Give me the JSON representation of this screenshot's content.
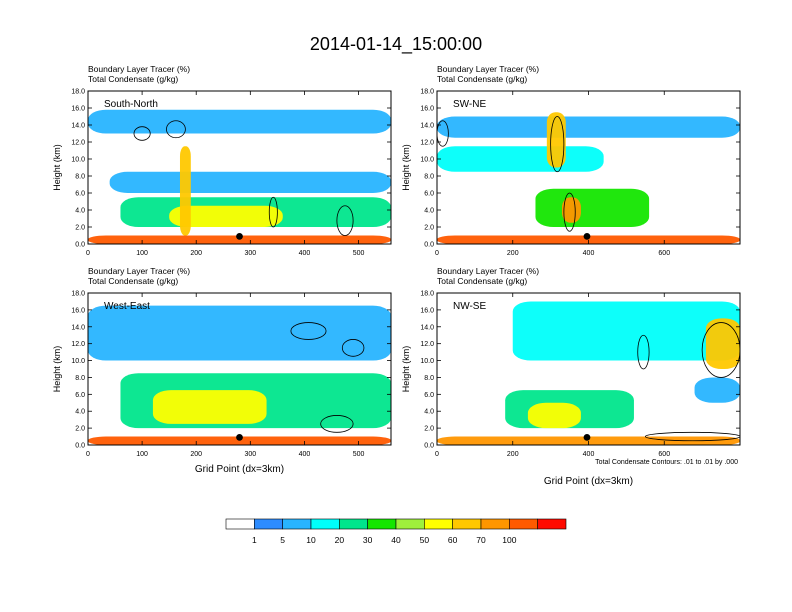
{
  "figure": {
    "title": "2014-01-14_15:00:00",
    "contour_note": "Total Condensate Contours: .01 to .01 by .000",
    "colorbar": {
      "levels": [
        "1",
        "5",
        "10",
        "20",
        "30",
        "40",
        "50",
        "60",
        "70",
        "100"
      ],
      "colors": [
        "#ffffff",
        "#2d8cff",
        "#28b4ff",
        "#00fffa",
        "#00e68c",
        "#14e600",
        "#9ff03c",
        "#ffff00",
        "#ffc800",
        "#ff9600",
        "#ff5a00",
        "#ff0a00"
      ]
    }
  },
  "chart_data": [
    {
      "type": "heatmap",
      "title": "South-North",
      "subtitle_lines": [
        "Boundary Layer Tracer   (%)",
        "Total Condensate   (g/kg)"
      ],
      "ylabel": "Height (km)",
      "xlabel": "",
      "xlim": [
        0,
        560
      ],
      "ylim": [
        0,
        18
      ],
      "xticks": [
        "0",
        "100",
        "200",
        "300",
        "400",
        "500"
      ],
      "yticks": [
        "0.0",
        "2.0",
        "4.0",
        "6.0",
        "8.0",
        "10.0",
        "12.0",
        "14.0",
        "16.0",
        "18.0"
      ],
      "marker_x": 280,
      "tracer_fields": [
        {
          "x_range": [
            0,
            560
          ],
          "y_range": [
            13.0,
            15.8
          ],
          "level": 2
        },
        {
          "x_range": [
            40,
            560
          ],
          "y_range": [
            6.0,
            8.5
          ],
          "level": 2
        },
        {
          "x_range": [
            60,
            560
          ],
          "y_range": [
            2.0,
            5.5
          ],
          "level": 4
        },
        {
          "x_range": [
            150,
            360
          ],
          "y_range": [
            2.0,
            4.5
          ],
          "level": 7
        },
        {
          "x_range": [
            170,
            190
          ],
          "y_range": [
            1.0,
            11.5
          ],
          "level": 8
        },
        {
          "x_range": [
            0,
            560
          ],
          "y_range": [
            0.0,
            1.0
          ],
          "level": 10
        }
      ],
      "condensate_contours": [
        {
          "x": [
            85,
            115
          ],
          "y": [
            12.2,
            13.8
          ]
        },
        {
          "x": [
            145,
            180
          ],
          "y": [
            12.5,
            14.5
          ]
        },
        {
          "x": [
            335,
            350
          ],
          "y": [
            2.0,
            5.5
          ]
        },
        {
          "x": [
            460,
            490
          ],
          "y": [
            1.0,
            4.5
          ]
        }
      ]
    },
    {
      "type": "heatmap",
      "title": "SW-NE",
      "subtitle_lines": [
        "Boundary Layer Tracer   (%)",
        "Total Condensate   (g/kg)"
      ],
      "ylabel": "Height (km)",
      "xlabel": "",
      "xlim": [
        0,
        800
      ],
      "ylim": [
        0,
        18
      ],
      "xticks": [
        "0",
        "200",
        "400",
        "600"
      ],
      "yticks": [
        "0.0",
        "2.0",
        "4.0",
        "6.0",
        "8.0",
        "10.0",
        "12.0",
        "14.0",
        "16.0",
        "18.0"
      ],
      "marker_x": 396,
      "tracer_fields": [
        {
          "x_range": [
            0,
            800
          ],
          "y_range": [
            12.5,
            15.0
          ],
          "level": 2
        },
        {
          "x_range": [
            0,
            440
          ],
          "y_range": [
            8.5,
            11.5
          ],
          "level": 3
        },
        {
          "x_range": [
            260,
            560
          ],
          "y_range": [
            2.0,
            6.5
          ],
          "level": 5
        },
        {
          "x_range": [
            290,
            340
          ],
          "y_range": [
            9.0,
            15.5
          ],
          "level": 8
        },
        {
          "x_range": [
            330,
            380
          ],
          "y_range": [
            2.5,
            5.5
          ],
          "level": 9
        },
        {
          "x_range": [
            0,
            800
          ],
          "y_range": [
            0.0,
            1.0
          ],
          "level": 10
        }
      ],
      "condensate_contours": [
        {
          "x": [
            300,
            335
          ],
          "y": [
            8.5,
            15.0
          ]
        },
        {
          "x": [
            335,
            365
          ],
          "y": [
            1.5,
            6.0
          ]
        },
        {
          "x": [
            0,
            30
          ],
          "y": [
            11.5,
            14.5
          ]
        }
      ]
    },
    {
      "type": "heatmap",
      "title": "West-East",
      "subtitle_lines": [
        "Boundary Layer Tracer   (%)",
        "Total Condensate   (g/kg)"
      ],
      "ylabel": "Height (km)",
      "xlabel": "Grid Point (dx=3km)",
      "xlim": [
        0,
        560
      ],
      "ylim": [
        0,
        18
      ],
      "xticks": [
        "0",
        "100",
        "200",
        "300",
        "400",
        "500"
      ],
      "yticks": [
        "0.0",
        "2.0",
        "4.0",
        "6.0",
        "8.0",
        "10.0",
        "12.0",
        "14.0",
        "16.0",
        "18.0"
      ],
      "marker_x": 280,
      "tracer_fields": [
        {
          "x_range": [
            0,
            560
          ],
          "y_range": [
            10.0,
            16.5
          ],
          "level": 2
        },
        {
          "x_range": [
            60,
            560
          ],
          "y_range": [
            2.0,
            8.5
          ],
          "level": 4
        },
        {
          "x_range": [
            120,
            330
          ],
          "y_range": [
            2.5,
            6.5
          ],
          "level": 7
        },
        {
          "x_range": [
            0,
            560
          ],
          "y_range": [
            0.0,
            1.0
          ],
          "level": 10
        }
      ],
      "condensate_contours": [
        {
          "x": [
            375,
            440
          ],
          "y": [
            12.5,
            14.5
          ]
        },
        {
          "x": [
            470,
            510
          ],
          "y": [
            10.5,
            12.5
          ]
        },
        {
          "x": [
            430,
            490
          ],
          "y": [
            1.5,
            3.5
          ]
        }
      ]
    },
    {
      "type": "heatmap",
      "title": "NW-SE",
      "subtitle_lines": [
        "Boundary Layer Tracer   (%)",
        "Total Condensate   (g/kg)"
      ],
      "ylabel": "Height (km)",
      "xlabel": "Grid Point (dx=3km)",
      "xlim": [
        0,
        800
      ],
      "ylim": [
        0,
        18
      ],
      "xticks": [
        "0",
        "200",
        "400",
        "600"
      ],
      "yticks": [
        "0.0",
        "2.0",
        "4.0",
        "6.0",
        "8.0",
        "10.0",
        "12.0",
        "14.0",
        "16.0",
        "18.0"
      ],
      "marker_x": 396,
      "tracer_fields": [
        {
          "x_range": [
            200,
            800
          ],
          "y_range": [
            10.0,
            17.0
          ],
          "level": 3
        },
        {
          "x_range": [
            180,
            520
          ],
          "y_range": [
            2.0,
            6.5
          ],
          "level": 4
        },
        {
          "x_range": [
            240,
            380
          ],
          "y_range": [
            2.0,
            5.0
          ],
          "level": 7
        },
        {
          "x_range": [
            710,
            800
          ],
          "y_range": [
            9.0,
            15.0
          ],
          "level": 8
        },
        {
          "x_range": [
            680,
            800
          ],
          "y_range": [
            5.0,
            8.0
          ],
          "level": 2
        },
        {
          "x_range": [
            0,
            800
          ],
          "y_range": [
            0.0,
            1.0
          ],
          "level": 9
        }
      ],
      "condensate_contours": [
        {
          "x": [
            530,
            560
          ],
          "y": [
            9.0,
            13.0
          ]
        },
        {
          "x": [
            700,
            800
          ],
          "y": [
            8.0,
            14.5
          ]
        },
        {
          "x": [
            550,
            800
          ],
          "y": [
            0.5,
            1.5
          ]
        }
      ]
    }
  ]
}
